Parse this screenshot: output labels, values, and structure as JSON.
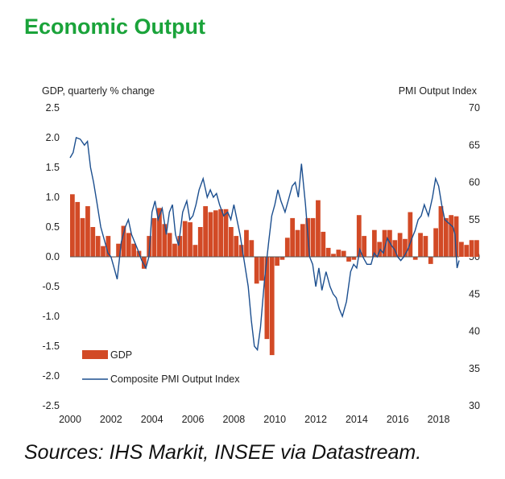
{
  "header": {
    "title": "Economic Output"
  },
  "footer": {
    "source": "Sources: IHS Markit, INSEE via Datastream."
  },
  "colors": {
    "title": "#1aa33a",
    "gdp_bar": "#d24a26",
    "pmi_line": "#1c4f8f"
  },
  "chart_data": {
    "type": "bar+line",
    "title": "Economic Output",
    "ylabel_left": "GDP, quarterly % change",
    "ylabel_right": "PMI Output Index",
    "ylim_left": [
      -2.5,
      2.5
    ],
    "ylim_right": [
      30,
      70
    ],
    "xlim": [
      2000,
      2019
    ],
    "yticks_left": [
      "2.5",
      "2.0",
      "1.5",
      "1.0",
      "0.5",
      "0.0",
      "-0.5",
      "-1.0",
      "-1.5",
      "-2.0",
      "-2.5"
    ],
    "yticks_right": [
      "70",
      "65",
      "60",
      "55",
      "50",
      "45",
      "40",
      "35",
      "30"
    ],
    "xticks": [
      "2000",
      "2002",
      "2004",
      "2006",
      "2008",
      "2010",
      "2012",
      "2014",
      "2016",
      "2018"
    ],
    "legend": [
      "GDP",
      "Composite PMI Output Index"
    ],
    "series": [
      {
        "name": "GDP",
        "kind": "bar",
        "axis": "left",
        "start": 2000.0,
        "step": 0.25,
        "values": [
          1.05,
          0.92,
          0.65,
          0.85,
          0.5,
          0.35,
          0.18,
          0.35,
          0.0,
          0.22,
          0.52,
          0.4,
          0.22,
          0.1,
          -0.2,
          0.35,
          0.65,
          0.82,
          0.55,
          0.4,
          0.22,
          0.35,
          0.6,
          0.58,
          0.2,
          0.5,
          0.85,
          0.75,
          0.78,
          0.8,
          0.8,
          0.5,
          0.35,
          0.2,
          0.45,
          0.28,
          -0.45,
          -0.4,
          -1.38,
          -1.65,
          -0.15,
          -0.05,
          0.32,
          0.65,
          0.45,
          0.55,
          0.65,
          0.65,
          0.95,
          0.42,
          0.15,
          0.05,
          0.12,
          0.1,
          -0.08,
          -0.05,
          0.7,
          0.35,
          0.0,
          0.45,
          0.25,
          0.45,
          0.45,
          0.28,
          0.4,
          0.3,
          0.75,
          -0.05,
          0.4,
          0.35,
          -0.12,
          0.48,
          0.85,
          0.65,
          0.7,
          0.68,
          0.25,
          0.2,
          0.28,
          0.28
        ]
      },
      {
        "name": "Composite PMI Output Index",
        "kind": "line",
        "axis": "right",
        "points": [
          [
            2000.0,
            63.3
          ],
          [
            2000.15,
            64.0
          ],
          [
            2000.3,
            66.0
          ],
          [
            2000.5,
            65.8
          ],
          [
            2000.7,
            65.0
          ],
          [
            2000.85,
            65.5
          ],
          [
            2001.0,
            62.0
          ],
          [
            2001.15,
            60.0
          ],
          [
            2001.3,
            57.5
          ],
          [
            2001.5,
            54.0
          ],
          [
            2001.7,
            52.0
          ],
          [
            2001.85,
            50.5
          ],
          [
            2002.0,
            50.0
          ],
          [
            2002.15,
            48.5
          ],
          [
            2002.3,
            47.0
          ],
          [
            2002.5,
            52.0
          ],
          [
            2002.7,
            54.0
          ],
          [
            2002.85,
            55.0
          ],
          [
            2003.0,
            53.0
          ],
          [
            2003.15,
            52.0
          ],
          [
            2003.3,
            51.0
          ],
          [
            2003.5,
            49.5
          ],
          [
            2003.7,
            48.5
          ],
          [
            2003.85,
            50.0
          ],
          [
            2004.0,
            56.0
          ],
          [
            2004.15,
            57.5
          ],
          [
            2004.3,
            55.0
          ],
          [
            2004.5,
            56.5
          ],
          [
            2004.7,
            53.0
          ],
          [
            2004.85,
            56.0
          ],
          [
            2005.0,
            57.0
          ],
          [
            2005.15,
            53.0
          ],
          [
            2005.3,
            51.5
          ],
          [
            2005.5,
            56.0
          ],
          [
            2005.7,
            57.5
          ],
          [
            2005.85,
            55.0
          ],
          [
            2006.0,
            55.5
          ],
          [
            2006.15,
            57.0
          ],
          [
            2006.3,
            59.0
          ],
          [
            2006.5,
            60.5
          ],
          [
            2006.7,
            58.0
          ],
          [
            2006.85,
            59.0
          ],
          [
            2007.0,
            58.0
          ],
          [
            2007.15,
            58.5
          ],
          [
            2007.3,
            57.0
          ],
          [
            2007.5,
            55.5
          ],
          [
            2007.7,
            56.0
          ],
          [
            2007.85,
            55.0
          ],
          [
            2008.0,
            57.0
          ],
          [
            2008.15,
            55.0
          ],
          [
            2008.3,
            53.0
          ],
          [
            2008.5,
            49.5
          ],
          [
            2008.7,
            46.0
          ],
          [
            2008.85,
            41.5
          ],
          [
            2009.0,
            38.0
          ],
          [
            2009.15,
            37.5
          ],
          [
            2009.3,
            40.5
          ],
          [
            2009.5,
            47.0
          ],
          [
            2009.7,
            52.0
          ],
          [
            2009.85,
            55.5
          ],
          [
            2010.0,
            57.0
          ],
          [
            2010.15,
            59.0
          ],
          [
            2010.3,
            57.5
          ],
          [
            2010.5,
            56.0
          ],
          [
            2010.7,
            58.0
          ],
          [
            2010.85,
            59.5
          ],
          [
            2011.0,
            60.0
          ],
          [
            2011.15,
            58.0
          ],
          [
            2011.3,
            62.5
          ],
          [
            2011.5,
            57.0
          ],
          [
            2011.7,
            50.0
          ],
          [
            2011.85,
            49.0
          ],
          [
            2012.0,
            46.0
          ],
          [
            2012.15,
            48.5
          ],
          [
            2012.3,
            45.5
          ],
          [
            2012.5,
            48.0
          ],
          [
            2012.7,
            46.0
          ],
          [
            2012.85,
            45.0
          ],
          [
            2013.0,
            44.5
          ],
          [
            2013.15,
            43.0
          ],
          [
            2013.3,
            42.0
          ],
          [
            2013.5,
            44.0
          ],
          [
            2013.7,
            48.0
          ],
          [
            2013.85,
            49.0
          ],
          [
            2014.0,
            48.5
          ],
          [
            2014.15,
            51.0
          ],
          [
            2014.3,
            50.0
          ],
          [
            2014.5,
            49.0
          ],
          [
            2014.7,
            49.0
          ],
          [
            2014.85,
            50.5
          ],
          [
            2015.0,
            50.0
          ],
          [
            2015.15,
            51.0
          ],
          [
            2015.3,
            50.5
          ],
          [
            2015.5,
            52.5
          ],
          [
            2015.7,
            51.5
          ],
          [
            2015.85,
            51.0
          ],
          [
            2016.0,
            50.0
          ],
          [
            2016.15,
            49.5
          ],
          [
            2016.3,
            50.0
          ],
          [
            2016.5,
            51.0
          ],
          [
            2016.7,
            52.5
          ],
          [
            2016.85,
            53.5
          ],
          [
            2017.0,
            55.0
          ],
          [
            2017.15,
            55.5
          ],
          [
            2017.3,
            57.0
          ],
          [
            2017.5,
            55.5
          ],
          [
            2017.7,
            58.0
          ],
          [
            2017.85,
            60.5
          ],
          [
            2018.0,
            59.5
          ],
          [
            2018.15,
            57.0
          ],
          [
            2018.3,
            55.0
          ],
          [
            2018.5,
            54.5
          ],
          [
            2018.7,
            54.0
          ],
          [
            2018.8,
            53.0
          ],
          [
            2018.9,
            48.5
          ],
          [
            2019.0,
            49.5
          ]
        ]
      }
    ]
  }
}
